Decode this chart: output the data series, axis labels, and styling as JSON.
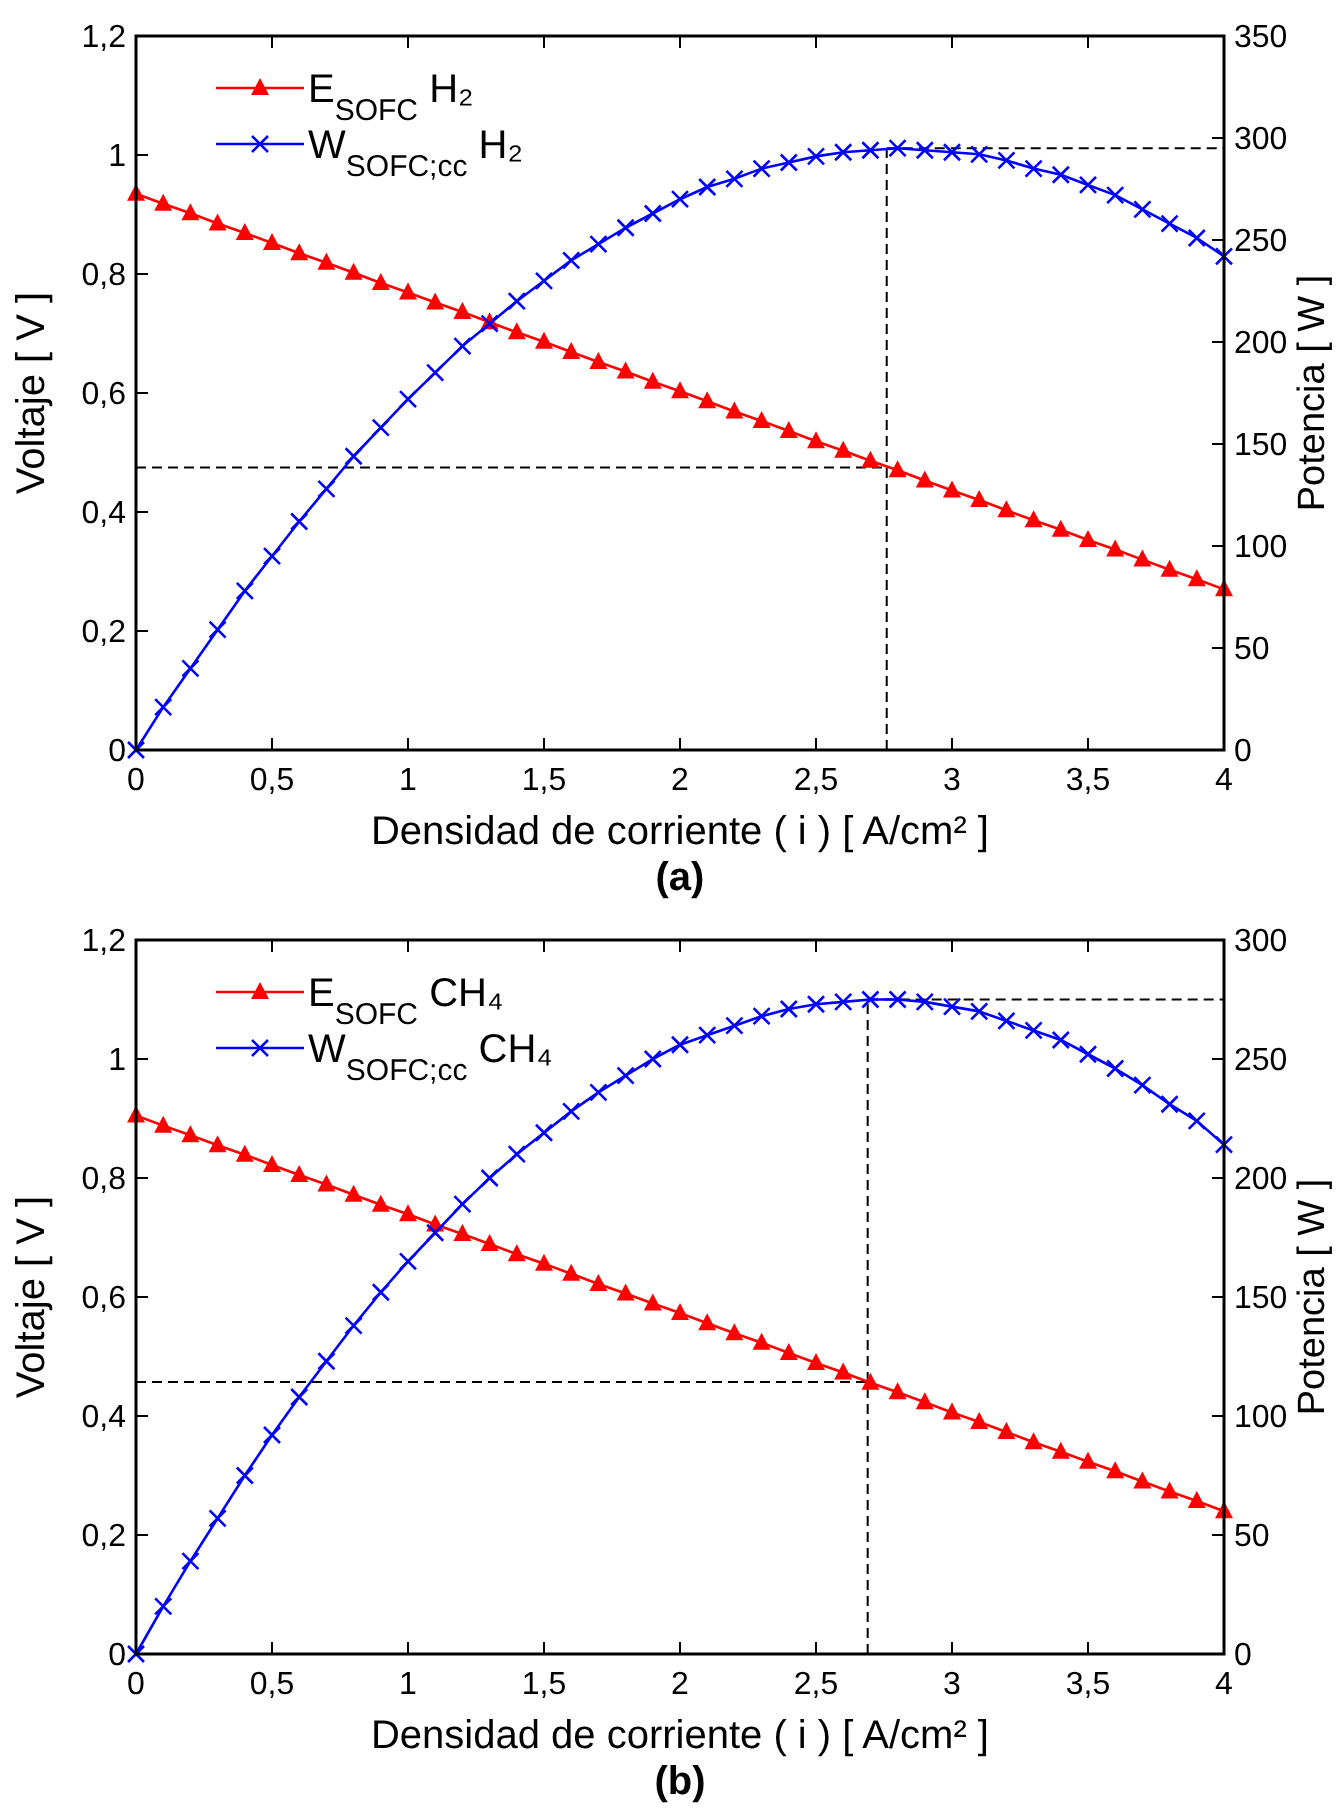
{
  "chart_data": [
    {
      "type": "line",
      "xlabel": "Densidad de corriente ( i ) [ A/cm² ]",
      "ylabel": "Voltaje [ V ]",
      "y2label": "Potencia [ W ]",
      "annotations": [
        "(a)"
      ],
      "legend": "top left",
      "line_style": "solid",
      "x": [
        0,
        0.1,
        0.2,
        0.3,
        0.4,
        0.5,
        0.6,
        0.7,
        0.8,
        0.9,
        1,
        1.1,
        1.2,
        1.3,
        1.4,
        1.5,
        1.6,
        1.7,
        1.8,
        1.9,
        2,
        2.1,
        2.2,
        2.3,
        2.4,
        2.5,
        2.6,
        2.7,
        2.8,
        2.9,
        3,
        3.1,
        3.2,
        3.3,
        3.4,
        3.5,
        3.6,
        3.7,
        3.8,
        3.9,
        4
      ],
      "xlim": [
        0,
        4
      ],
      "xticks": [
        {
          "value": 0,
          "label": "0"
        },
        {
          "value": 0.5,
          "label": "0,5"
        },
        1,
        {
          "value": 1.5,
          "label": "1,5"
        },
        2,
        {
          "value": 2.5,
          "label": "2,5"
        },
        3,
        {
          "value": 3.5,
          "label": "3,5"
        },
        4
      ],
      "ylim": [
        0,
        1.2
      ],
      "yticks": [
        {
          "value": 0,
          "label": "0"
        },
        {
          "value": 0.2,
          "label": "0,2"
        },
        {
          "value": 0.4,
          "label": "0,4"
        },
        {
          "value": 0.6,
          "label": "0,6"
        },
        {
          "value": 0.8,
          "label": "0,8"
        },
        1,
        {
          "value": 1.2,
          "label": "1,2"
        }
      ],
      "y2lim": [
        0,
        350
      ],
      "y2ticks": [
        {
          "value": 0,
          "label": "0"
        },
        50,
        100,
        150,
        200,
        250,
        300,
        350
      ],
      "series": [
        {
          "name": "E$_{SOFC}$ H₂",
          "color": "#ff0000",
          "marker": "triangle",
          "values": [
            0.935,
            0.918,
            0.902,
            0.885,
            0.869,
            0.852,
            0.835,
            0.819,
            0.802,
            0.785,
            0.769,
            0.752,
            0.736,
            0.719,
            0.702,
            0.686,
            0.669,
            0.652,
            0.636,
            0.619,
            0.603,
            0.586,
            0.569,
            0.553,
            0.536,
            0.519,
            0.503,
            0.486,
            0.47,
            0.453,
            0.436,
            0.42,
            0.403,
            0.386,
            0.37,
            0.353,
            0.337,
            0.32,
            0.303,
            0.287,
            0.27
          ]
        },
        {
          "name": "W$_{SOFC;cc}$ H₂",
          "color": "#0000ff",
          "marker": "cross",
          "axis": "y2",
          "values": [
            0,
            21,
            40,
            59,
            78,
            95,
            112,
            128,
            144,
            158,
            172,
            185,
            198,
            209,
            220,
            230,
            240,
            248,
            256,
            263,
            270,
            276,
            280,
            285,
            288,
            291,
            293,
            294,
            295,
            294,
            293,
            292,
            289,
            285,
            282,
            277,
            272,
            265,
            258,
            251,
            242
          ]
        }
      ],
      "ref_lines": [
        {
          "axis": "x",
          "value": 2.76,
          "line_style": "dashed",
          "color": "#000000"
        },
        {
          "axis": "y",
          "value": 0.475,
          "line_style": "dashed",
          "color": "#000000"
        },
        {
          "axis": "y2",
          "value": 295,
          "line_style": "dashed",
          "color": "#000000"
        }
      ]
    },
    {
      "type": "line",
      "xlabel": "Densidad de corriente ( i ) [ A/cm² ]",
      "ylabel": "Voltaje [ V ]",
      "y2label": "Potencia [ W ]",
      "annotations": [
        "(b)"
      ],
      "legend": "top left",
      "line_style": "solid",
      "x": [
        0,
        0.1,
        0.2,
        0.3,
        0.4,
        0.5,
        0.6,
        0.7,
        0.8,
        0.9,
        1,
        1.1,
        1.2,
        1.3,
        1.4,
        1.5,
        1.6,
        1.7,
        1.8,
        1.9,
        2,
        2.1,
        2.2,
        2.3,
        2.4,
        2.5,
        2.6,
        2.7,
        2.8,
        2.9,
        3,
        3.1,
        3.2,
        3.3,
        3.4,
        3.5,
        3.6,
        3.7,
        3.8,
        3.9,
        4
      ],
      "xlim": [
        0,
        4
      ],
      "xticks": [
        {
          "value": 0,
          "label": "0"
        },
        {
          "value": 0.5,
          "label": "0,5"
        },
        1,
        {
          "value": 1.5,
          "label": "1,5"
        },
        2,
        {
          "value": 2.5,
          "label": "2,5"
        },
        3,
        {
          "value": 3.5,
          "label": "3,5"
        },
        4
      ],
      "ylim": [
        0,
        1.2
      ],
      "yticks": [
        {
          "value": 0,
          "label": "0"
        },
        {
          "value": 0.2,
          "label": "0,2"
        },
        {
          "value": 0.4,
          "label": "0,4"
        },
        {
          "value": 0.6,
          "label": "0,6"
        },
        {
          "value": 0.8,
          "label": "0,8"
        },
        1,
        {
          "value": 1.2,
          "label": "1,2"
        }
      ],
      "y2lim": [
        0,
        300
      ],
      "y2ticks": [
        {
          "value": 0,
          "label": "0"
        },
        50,
        100,
        150,
        200,
        250,
        300
      ],
      "series": [
        {
          "name": "E$_{SOFC}$ CH₄",
          "color": "#ff0000",
          "marker": "triangle",
          "values": [
            0.905,
            0.888,
            0.872,
            0.855,
            0.839,
            0.822,
            0.805,
            0.789,
            0.772,
            0.755,
            0.739,
            0.722,
            0.706,
            0.689,
            0.672,
            0.656,
            0.639,
            0.622,
            0.606,
            0.589,
            0.573,
            0.556,
            0.539,
            0.523,
            0.506,
            0.489,
            0.473,
            0.456,
            0.44,
            0.423,
            0.406,
            0.39,
            0.373,
            0.356,
            0.34,
            0.323,
            0.307,
            0.29,
            0.273,
            0.257,
            0.24
          ]
        },
        {
          "name": "W$_{SOFC;cc}$ CH₄",
          "color": "#0000ff",
          "marker": "cross",
          "axis": "y2",
          "values": [
            0,
            20,
            39,
            57,
            75,
            92,
            108,
            123,
            138,
            152,
            165,
            177,
            189,
            200,
            210,
            219,
            228,
            236,
            243,
            250,
            256,
            260,
            264,
            268,
            271,
            273,
            274,
            275,
            275,
            274,
            272,
            270,
            266,
            262,
            258,
            252,
            246,
            239,
            231,
            224,
            214
          ]
        }
      ],
      "ref_lines": [
        {
          "axis": "x",
          "value": 2.69,
          "line_style": "dashed",
          "color": "#000000"
        },
        {
          "axis": "y",
          "value": 0.457,
          "line_style": "dashed",
          "color": "#000000"
        },
        {
          "axis": "y2",
          "value": 275,
          "line_style": "dashed",
          "color": "#000000"
        }
      ]
    }
  ]
}
